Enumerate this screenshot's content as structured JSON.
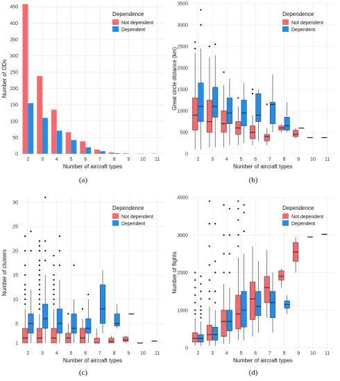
{
  "figure": {
    "panel_labels": [
      "(a)",
      "(b)",
      "(c)",
      "(d)"
    ]
  },
  "colors": {
    "not_dependent": "#f8696b",
    "dependent": "#1f8ef1",
    "grid": "#ebebeb",
    "box_line": "#444444"
  },
  "chart_data": [
    {
      "id": "a",
      "type": "bar",
      "xlabel": "Number of aircraft types",
      "ylabel": "Number of ODs",
      "ylim": [
        0,
        460
      ],
      "yticks": [
        0,
        50,
        100,
        150,
        200,
        250,
        300,
        350,
        400,
        450
      ],
      "categories": [
        "2",
        "3",
        "4",
        "5",
        "6",
        "7",
        "8",
        "9",
        "10",
        "11"
      ],
      "legend": {
        "title": "Dependence",
        "position": "top-right",
        "labels": [
          "Not dependent",
          "Dependent"
        ]
      },
      "series": [
        {
          "name": "Not dependent",
          "values": [
            458,
            238,
            135,
            66,
            38,
            13,
            4,
            2,
            1,
            1
          ]
        },
        {
          "name": "Dependent",
          "values": [
            155,
            110,
            71,
            42,
            20,
            8,
            2,
            0,
            0,
            0
          ]
        }
      ]
    },
    {
      "id": "b",
      "type": "box",
      "xlabel": "Number of aircraft types",
      "ylabel": "Great circle distance (km)",
      "ylim": [
        0,
        3500
      ],
      "yticks": [
        0,
        500,
        1000,
        1500,
        2000,
        2500,
        3000,
        3500
      ],
      "categories": [
        "2",
        "3",
        "4",
        "5",
        "6",
        "7",
        "8",
        "9",
        "10",
        "11"
      ],
      "legend": {
        "title": "Dependence",
        "position": "top-right",
        "labels": [
          "Not dependent",
          "Dependent"
        ]
      },
      "series": [
        {
          "name": "Not dependent",
          "boxes": [
            {
              "cat": "2",
              "min": 100,
              "q1": 550,
              "med": 900,
              "q3": 1300,
              "max": 2350,
              "out": [
                2450,
                2600
              ]
            },
            {
              "cat": "3",
              "min": 150,
              "q1": 500,
              "med": 750,
              "q3": 1250,
              "max": 2250,
              "out": [
                2500
              ]
            },
            {
              "cat": "4",
              "min": 150,
              "q1": 500,
              "med": 700,
              "q3": 1000,
              "max": 1600,
              "out": [
                1900
              ]
            },
            {
              "cat": "5",
              "min": 200,
              "q1": 450,
              "med": 600,
              "q3": 750,
              "max": 1100,
              "out": [
                1300
              ]
            },
            {
              "cat": "6",
              "min": 200,
              "q1": 350,
              "med": 500,
              "q3": 650,
              "max": 900,
              "out": [
                1400,
                1500
              ]
            },
            {
              "cat": "7",
              "min": 200,
              "q1": 300,
              "med": 400,
              "q3": 450,
              "max": 600,
              "out": [
                1150
              ]
            },
            {
              "cat": "8",
              "min": 500,
              "q1": 550,
              "med": 600,
              "q3": 650,
              "max": 700,
              "out": []
            },
            {
              "cat": "9",
              "min": 350,
              "q1": 400,
              "med": 450,
              "q3": 550,
              "max": 600,
              "out": []
            },
            {
              "cat": "10",
              "min": 380,
              "q1": 380,
              "med": 380,
              "q3": 380,
              "max": 380,
              "out": []
            },
            {
              "cat": "11",
              "min": 380,
              "q1": 380,
              "med": 380,
              "q3": 380,
              "max": 380,
              "out": []
            }
          ]
        },
        {
          "name": "Dependent",
          "boxes": [
            {
              "cat": "2",
              "min": 100,
              "q1": 750,
              "med": 1100,
              "q3": 1650,
              "max": 2450,
              "out": [
                3000,
                3350
              ]
            },
            {
              "cat": "3",
              "min": 150,
              "q1": 850,
              "med": 1100,
              "q3": 1550,
              "max": 2300,
              "out": [
                2550
              ]
            },
            {
              "cat": "4",
              "min": 200,
              "q1": 700,
              "med": 950,
              "q3": 1300,
              "max": 1750,
              "out": []
            },
            {
              "cat": "5",
              "min": 250,
              "q1": 650,
              "med": 950,
              "q3": 1250,
              "max": 1650,
              "out": []
            },
            {
              "cat": "6",
              "min": 300,
              "q1": 750,
              "med": 900,
              "q3": 1400,
              "max": 1500,
              "out": []
            },
            {
              "cat": "7",
              "min": 500,
              "q1": 700,
              "med": 1150,
              "q3": 1200,
              "max": 1850,
              "out": []
            },
            {
              "cat": "8",
              "min": 500,
              "q1": 550,
              "med": 650,
              "q3": 850,
              "max": 1200,
              "out": []
            },
            {
              "cat": "9",
              "min": 600,
              "q1": 600,
              "med": 600,
              "q3": 600,
              "max": 600,
              "out": []
            }
          ]
        }
      ]
    },
    {
      "id": "c",
      "type": "box",
      "xlabel": "Number of aircraft types",
      "ylabel": "Number of clusters",
      "ylim": [
        0,
        31
      ],
      "yticks": [
        1,
        5,
        10,
        15,
        20,
        25,
        30
      ],
      "categories": [
        "2",
        "3",
        "4",
        "5",
        "6",
        "7",
        "8",
        "9",
        "10",
        "11"
      ],
      "legend": {
        "title": "Dependence",
        "position": "top-right",
        "labels": [
          "Not dependent",
          "Dependent"
        ]
      },
      "series": [
        {
          "name": "Not dependent",
          "boxes": [
            {
              "cat": "2",
              "min": 1,
              "q1": 1,
              "med": 2,
              "q3": 4,
              "max": 8,
              "out": [
                9,
                10,
                11,
                12,
                13,
                15,
                17,
                20,
                23
              ]
            },
            {
              "cat": "3",
              "min": 1,
              "q1": 1,
              "med": 2,
              "q3": 4,
              "max": 7,
              "out": [
                8,
                9,
                10,
                11,
                12,
                13,
                14,
                15,
                16,
                17,
                18,
                20,
                21,
                22
              ]
            },
            {
              "cat": "4",
              "min": 1,
              "q1": 1,
              "med": 2,
              "q3": 4,
              "max": 8,
              "out": [
                9,
                10,
                11,
                12,
                13,
                14,
                15,
                17,
                19
              ]
            },
            {
              "cat": "5",
              "min": 1,
              "q1": 1,
              "med": 2,
              "q3": 3,
              "max": 5,
              "out": [
                7
              ]
            },
            {
              "cat": "6",
              "min": 1,
              "q1": 1,
              "med": 2,
              "q3": 4,
              "max": 6,
              "out": [
                8
              ]
            },
            {
              "cat": "7",
              "min": 1,
              "q1": 1,
              "med": 1,
              "q3": 2,
              "max": 4,
              "out": []
            },
            {
              "cat": "8",
              "min": 1,
              "q1": 1,
              "med": 1.3,
              "q3": 2,
              "max": 2.5,
              "out": []
            },
            {
              "cat": "9",
              "min": 1,
              "q1": 1.3,
              "med": 1.6,
              "q3": 2.2,
              "max": 2.5,
              "out": []
            },
            {
              "cat": "10",
              "min": 1,
              "q1": 1,
              "med": 1,
              "q3": 1,
              "max": 1,
              "out": []
            },
            {
              "cat": "11",
              "min": 1.4,
              "q1": 1.4,
              "med": 1.4,
              "q3": 1.4,
              "max": 1.4,
              "out": []
            }
          ]
        },
        {
          "name": "Dependent",
          "boxes": [
            {
              "cat": "2",
              "min": 1,
              "q1": 3,
              "med": 5,
              "q3": 7,
              "max": 12,
              "out": [
                20,
                24
              ]
            },
            {
              "cat": "3",
              "min": 1,
              "q1": 4,
              "med": 6,
              "q3": 9,
              "max": 15,
              "out": [
                18,
                20,
                22,
                31
              ]
            },
            {
              "cat": "4",
              "min": 1,
              "q1": 3,
              "med": 5,
              "q3": 8,
              "max": 14,
              "out": [
                17,
                20,
                23
              ]
            },
            {
              "cat": "5",
              "min": 1,
              "q1": 3,
              "med": 4,
              "q3": 7,
              "max": 10,
              "out": [
                17
              ]
            },
            {
              "cat": "6",
              "min": 1,
              "q1": 3,
              "med": 4,
              "q3": 6,
              "max": 10,
              "out": [
                11
              ]
            },
            {
              "cat": "7",
              "min": 3,
              "q1": 5,
              "med": 8,
              "q3": 13,
              "max": 16,
              "out": []
            },
            {
              "cat": "8",
              "min": 4,
              "q1": 4.5,
              "med": 5,
              "q3": 7,
              "max": 9,
              "out": []
            },
            {
              "cat": "9",
              "min": 7,
              "q1": 7,
              "med": 7,
              "q3": 7,
              "max": 7,
              "out": []
            }
          ]
        }
      ]
    },
    {
      "id": "d",
      "type": "box",
      "xlabel": "Number of aircraft types",
      "ylabel": "Number of flights",
      "ylim": [
        0,
        4000
      ],
      "yticks": [
        0,
        1000,
        2000,
        3000,
        4000
      ],
      "categories": [
        "2",
        "3",
        "4",
        "5",
        "6",
        "7",
        "8",
        "9",
        "10",
        "11"
      ],
      "legend": {
        "title": "Dependence",
        "position": "top-right",
        "labels": [
          "Not dependent",
          "Dependent"
        ]
      },
      "series": [
        {
          "name": "Not dependent",
          "boxes": [
            {
              "cat": "2",
              "min": 50,
              "q1": 150,
              "med": 250,
              "q3": 400,
              "max": 800,
              "out": [
                900,
                1000,
                1200,
                1400,
                1600,
                1800,
                2000
              ]
            },
            {
              "cat": "3",
              "min": 50,
              "q1": 200,
              "med": 350,
              "q3": 600,
              "max": 1100,
              "out": [
                1300,
                1500,
                1800,
                2200,
                2700,
                3300,
                3900
              ]
            },
            {
              "cat": "4",
              "min": 100,
              "q1": 300,
              "med": 700,
              "q3": 1000,
              "max": 1700,
              "out": [
                2000,
                2500,
                3000,
                3800
              ]
            },
            {
              "cat": "5",
              "min": 200,
              "q1": 500,
              "med": 900,
              "q3": 1400,
              "max": 2400,
              "out": [
                2700,
                3000,
                3400,
                3700,
                3900
              ]
            },
            {
              "cat": "6",
              "min": 300,
              "q1": 750,
              "med": 1300,
              "q3": 1750,
              "max": 2700,
              "out": []
            },
            {
              "cat": "7",
              "min": 800,
              "q1": 1200,
              "med": 1600,
              "q3": 1900,
              "max": 2600,
              "out": []
            },
            {
              "cat": "8",
              "min": 1600,
              "q1": 1800,
              "med": 1900,
              "q3": 2050,
              "max": 2100,
              "out": []
            },
            {
              "cat": "9",
              "min": 2000,
              "q1": 2300,
              "med": 2550,
              "q3": 2800,
              "max": 2950,
              "out": []
            },
            {
              "cat": "10",
              "min": 2950,
              "q1": 2950,
              "med": 2950,
              "q3": 2950,
              "max": 2950,
              "out": []
            },
            {
              "cat": "11",
              "min": 3020,
              "q1": 3020,
              "med": 3020,
              "q3": 3020,
              "max": 3020,
              "out": []
            }
          ]
        },
        {
          "name": "Dependent",
          "boxes": [
            {
              "cat": "2",
              "min": 50,
              "q1": 150,
              "med": 250,
              "q3": 350,
              "max": 700,
              "out": [
                800,
                900,
                1000,
                1100,
                1300,
                1500,
                1700,
                1900
              ]
            },
            {
              "cat": "3",
              "min": 50,
              "q1": 200,
              "med": 350,
              "q3": 550,
              "max": 1000,
              "out": [
                1200,
                1500,
                2000,
                2300,
                3300
              ]
            },
            {
              "cat": "4",
              "min": 100,
              "q1": 450,
              "med": 700,
              "q3": 1000,
              "max": 1600,
              "out": [
                2000,
                2500,
                3000,
                3700
              ]
            },
            {
              "cat": "5",
              "min": 200,
              "q1": 550,
              "med": 1000,
              "q3": 1500,
              "max": 2500,
              "out": [
                3100,
                3600,
                3800
              ]
            },
            {
              "cat": "6",
              "min": 400,
              "q1": 850,
              "med": 1100,
              "q3": 1500,
              "max": 2300,
              "out": []
            },
            {
              "cat": "7",
              "min": 400,
              "q1": 800,
              "med": 1200,
              "q3": 1500,
              "max": 2000,
              "out": []
            },
            {
              "cat": "8",
              "min": 900,
              "q1": 1050,
              "med": 1150,
              "q3": 1250,
              "max": 1400,
              "out": []
            }
          ]
        }
      ]
    }
  ]
}
